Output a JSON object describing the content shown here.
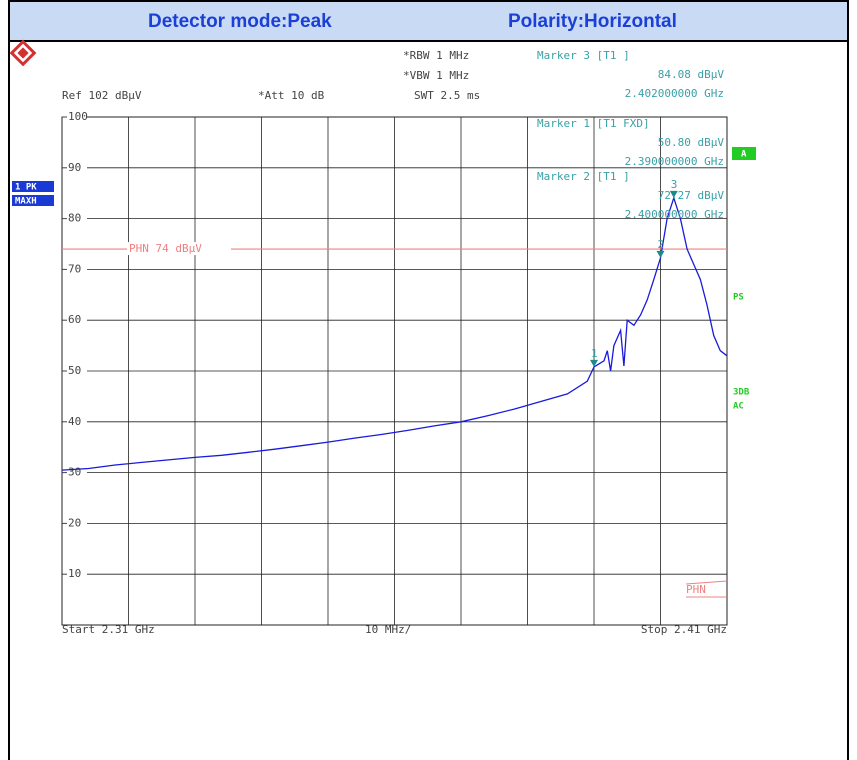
{
  "header": {
    "detector": "Detector mode:Peak",
    "polarity": "Polarity:Horizontal"
  },
  "chart_data": {
    "type": "line",
    "settings": {
      "ref": "Ref  102 dBµV",
      "att": "*Att  10 dB",
      "rbw": "*RBW 1 MHz",
      "vbw": "*VBW 1 MHz",
      "swt": "SWT 2.5 ms"
    },
    "trace_labels": {
      "detector": "1 PK",
      "mode": "MAXH"
    },
    "side_labels": {
      "a": "A",
      "ps": "PS",
      "db": "3DB",
      "ac": "AC"
    },
    "start": "Start 2.31 GHz",
    "span": "10 MHz/",
    "stop": "Stop 2.41 GHz",
    "xlim": [
      2.31,
      2.41
    ],
    "ylim": [
      0,
      100
    ],
    "yticks": [
      10,
      20,
      30,
      40,
      50,
      60,
      70,
      80,
      90,
      100
    ],
    "grid": true,
    "limit_line": {
      "label": "PHN 74 dBµV",
      "value": 74,
      "color": "#f08080",
      "end_label": "PHN"
    },
    "series": [
      {
        "name": "1 PK MAXH",
        "color": "#1a1adc",
        "x": [
          2.31,
          2.314,
          2.318,
          2.322,
          2.326,
          2.33,
          2.334,
          2.338,
          2.342,
          2.346,
          2.35,
          2.354,
          2.358,
          2.362,
          2.366,
          2.37,
          2.374,
          2.378,
          2.382,
          2.386,
          2.389,
          2.39,
          2.3915,
          2.392,
          2.3925,
          2.393,
          2.394,
          2.3945,
          2.395,
          2.396,
          2.397,
          2.398,
          2.399,
          2.4,
          2.401,
          2.402,
          2.403,
          2.404,
          2.405,
          2.406,
          2.407,
          2.408,
          2.409,
          2.41
        ],
        "values": [
          30.5,
          30.8,
          31.5,
          32.0,
          32.5,
          33.0,
          33.4,
          34.0,
          34.6,
          35.3,
          36.0,
          36.8,
          37.5,
          38.3,
          39.2,
          40.0,
          41.2,
          42.5,
          44.0,
          45.5,
          48.0,
          50.8,
          52.0,
          54.0,
          50.0,
          55.0,
          58.0,
          51.0,
          60.0,
          59.0,
          61.0,
          64.0,
          68.0,
          72.27,
          80.0,
          84.08,
          80.0,
          74.0,
          71.0,
          68.0,
          63.0,
          57.0,
          54.0,
          53.0
        ]
      }
    ],
    "markers": [
      {
        "number": "1",
        "name": "Marker 1 [T1 FXD]",
        "level": "50.80 dBµV",
        "frequency": "2.390000000 GHz",
        "x": 2.39,
        "y": 50.8
      },
      {
        "number": "2",
        "name": "Marker 2 [T1 ]",
        "level": "72.27 dBµV",
        "frequency": "2.400000000 GHz",
        "x": 2.4,
        "y": 72.27
      },
      {
        "number": "3",
        "name": "Marker 3 [T1 ]",
        "level": "84.08 dBµV",
        "frequency": "2.402000000 GHz",
        "x": 2.402,
        "y": 84.08
      }
    ]
  }
}
